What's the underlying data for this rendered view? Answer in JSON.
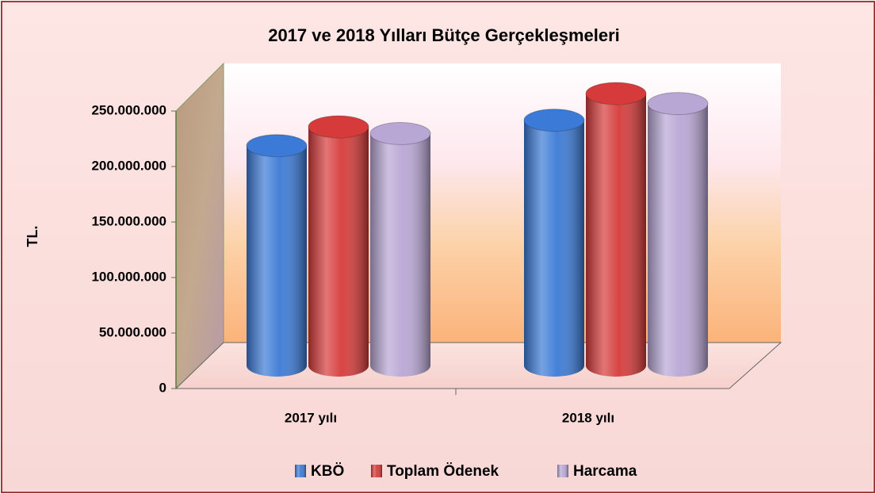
{
  "chart_data": {
    "type": "bar3d",
    "title": "2017 ve 2018 Yılları Bütçe Gerçekleşmeleri",
    "y_label": "TL.",
    "categories": [
      "2017 yılı",
      "2018 yılı"
    ],
    "series": [
      {
        "name": "KBÖ",
        "color": "#3b7ad6",
        "values": [
          198000000,
          221000000
        ]
      },
      {
        "name": "Toplam Ödenek",
        "color": "#d63a3a",
        "values": [
          215000000,
          245000000
        ]
      },
      {
        "name": "Harcama",
        "color": "#b8a6d4",
        "values": [
          209000000,
          236000000
        ]
      }
    ],
    "ylim": [
      0,
      250000000
    ],
    "yticks": [
      0,
      {
        "value": 50000000,
        "label": "50.000.000"
      },
      {
        "value": 100000000,
        "label": "100.000.000"
      },
      {
        "value": 150000000,
        "label": "150.000.000"
      },
      {
        "value": 200000000,
        "label": "200.000.000"
      },
      {
        "value": 250000000,
        "label": "250.000.000"
      }
    ],
    "legend": "bottom"
  }
}
